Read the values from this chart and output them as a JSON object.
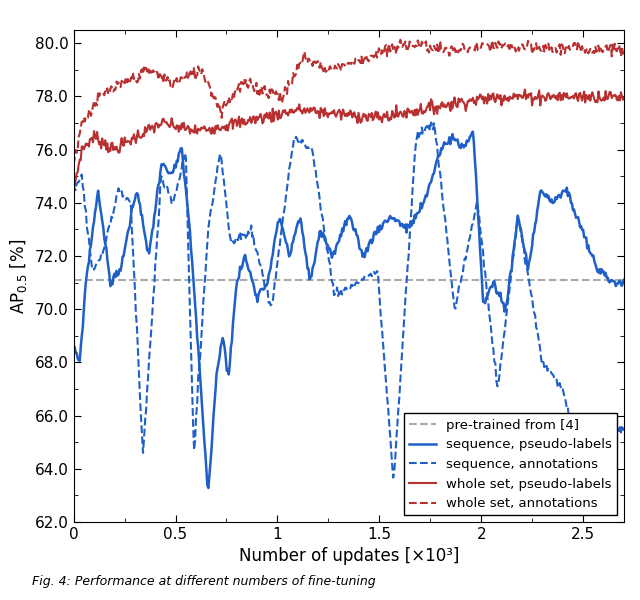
{
  "title": "",
  "xlabel": "Number of updates [×10³]",
  "ylabel": "AP$_{0.5}$ [%]",
  "xlim": [
    0,
    2700
  ],
  "ylim": [
    62.0,
    80.5
  ],
  "yticks": [
    62.0,
    64.0,
    66.0,
    68.0,
    70.0,
    72.0,
    74.0,
    76.0,
    78.0,
    80.0
  ],
  "xticks": [
    0,
    500,
    1000,
    1500,
    2000,
    2500
  ],
  "xticklabels": [
    "0",
    "0.5",
    "1",
    "1.5",
    "2",
    "2.5"
  ],
  "pretrained_value": 71.1,
  "color_blue": "#1f5fc8",
  "color_red": "#b83030",
  "color_gray": "#aaaaaa",
  "linewidth_blue_solid": 1.8,
  "linewidth_blue_dash": 1.5,
  "linewidth_red": 1.5,
  "linewidth_gray": 1.5,
  "legend_labels": [
    "pre-trained from [4]",
    "sequence, pseudo-labels",
    "sequence, annotations",
    "whole set, pseudo-labels",
    "whole set, annotations"
  ],
  "caption": "Fig. 4: Performance at different numbers of fine-tuning"
}
